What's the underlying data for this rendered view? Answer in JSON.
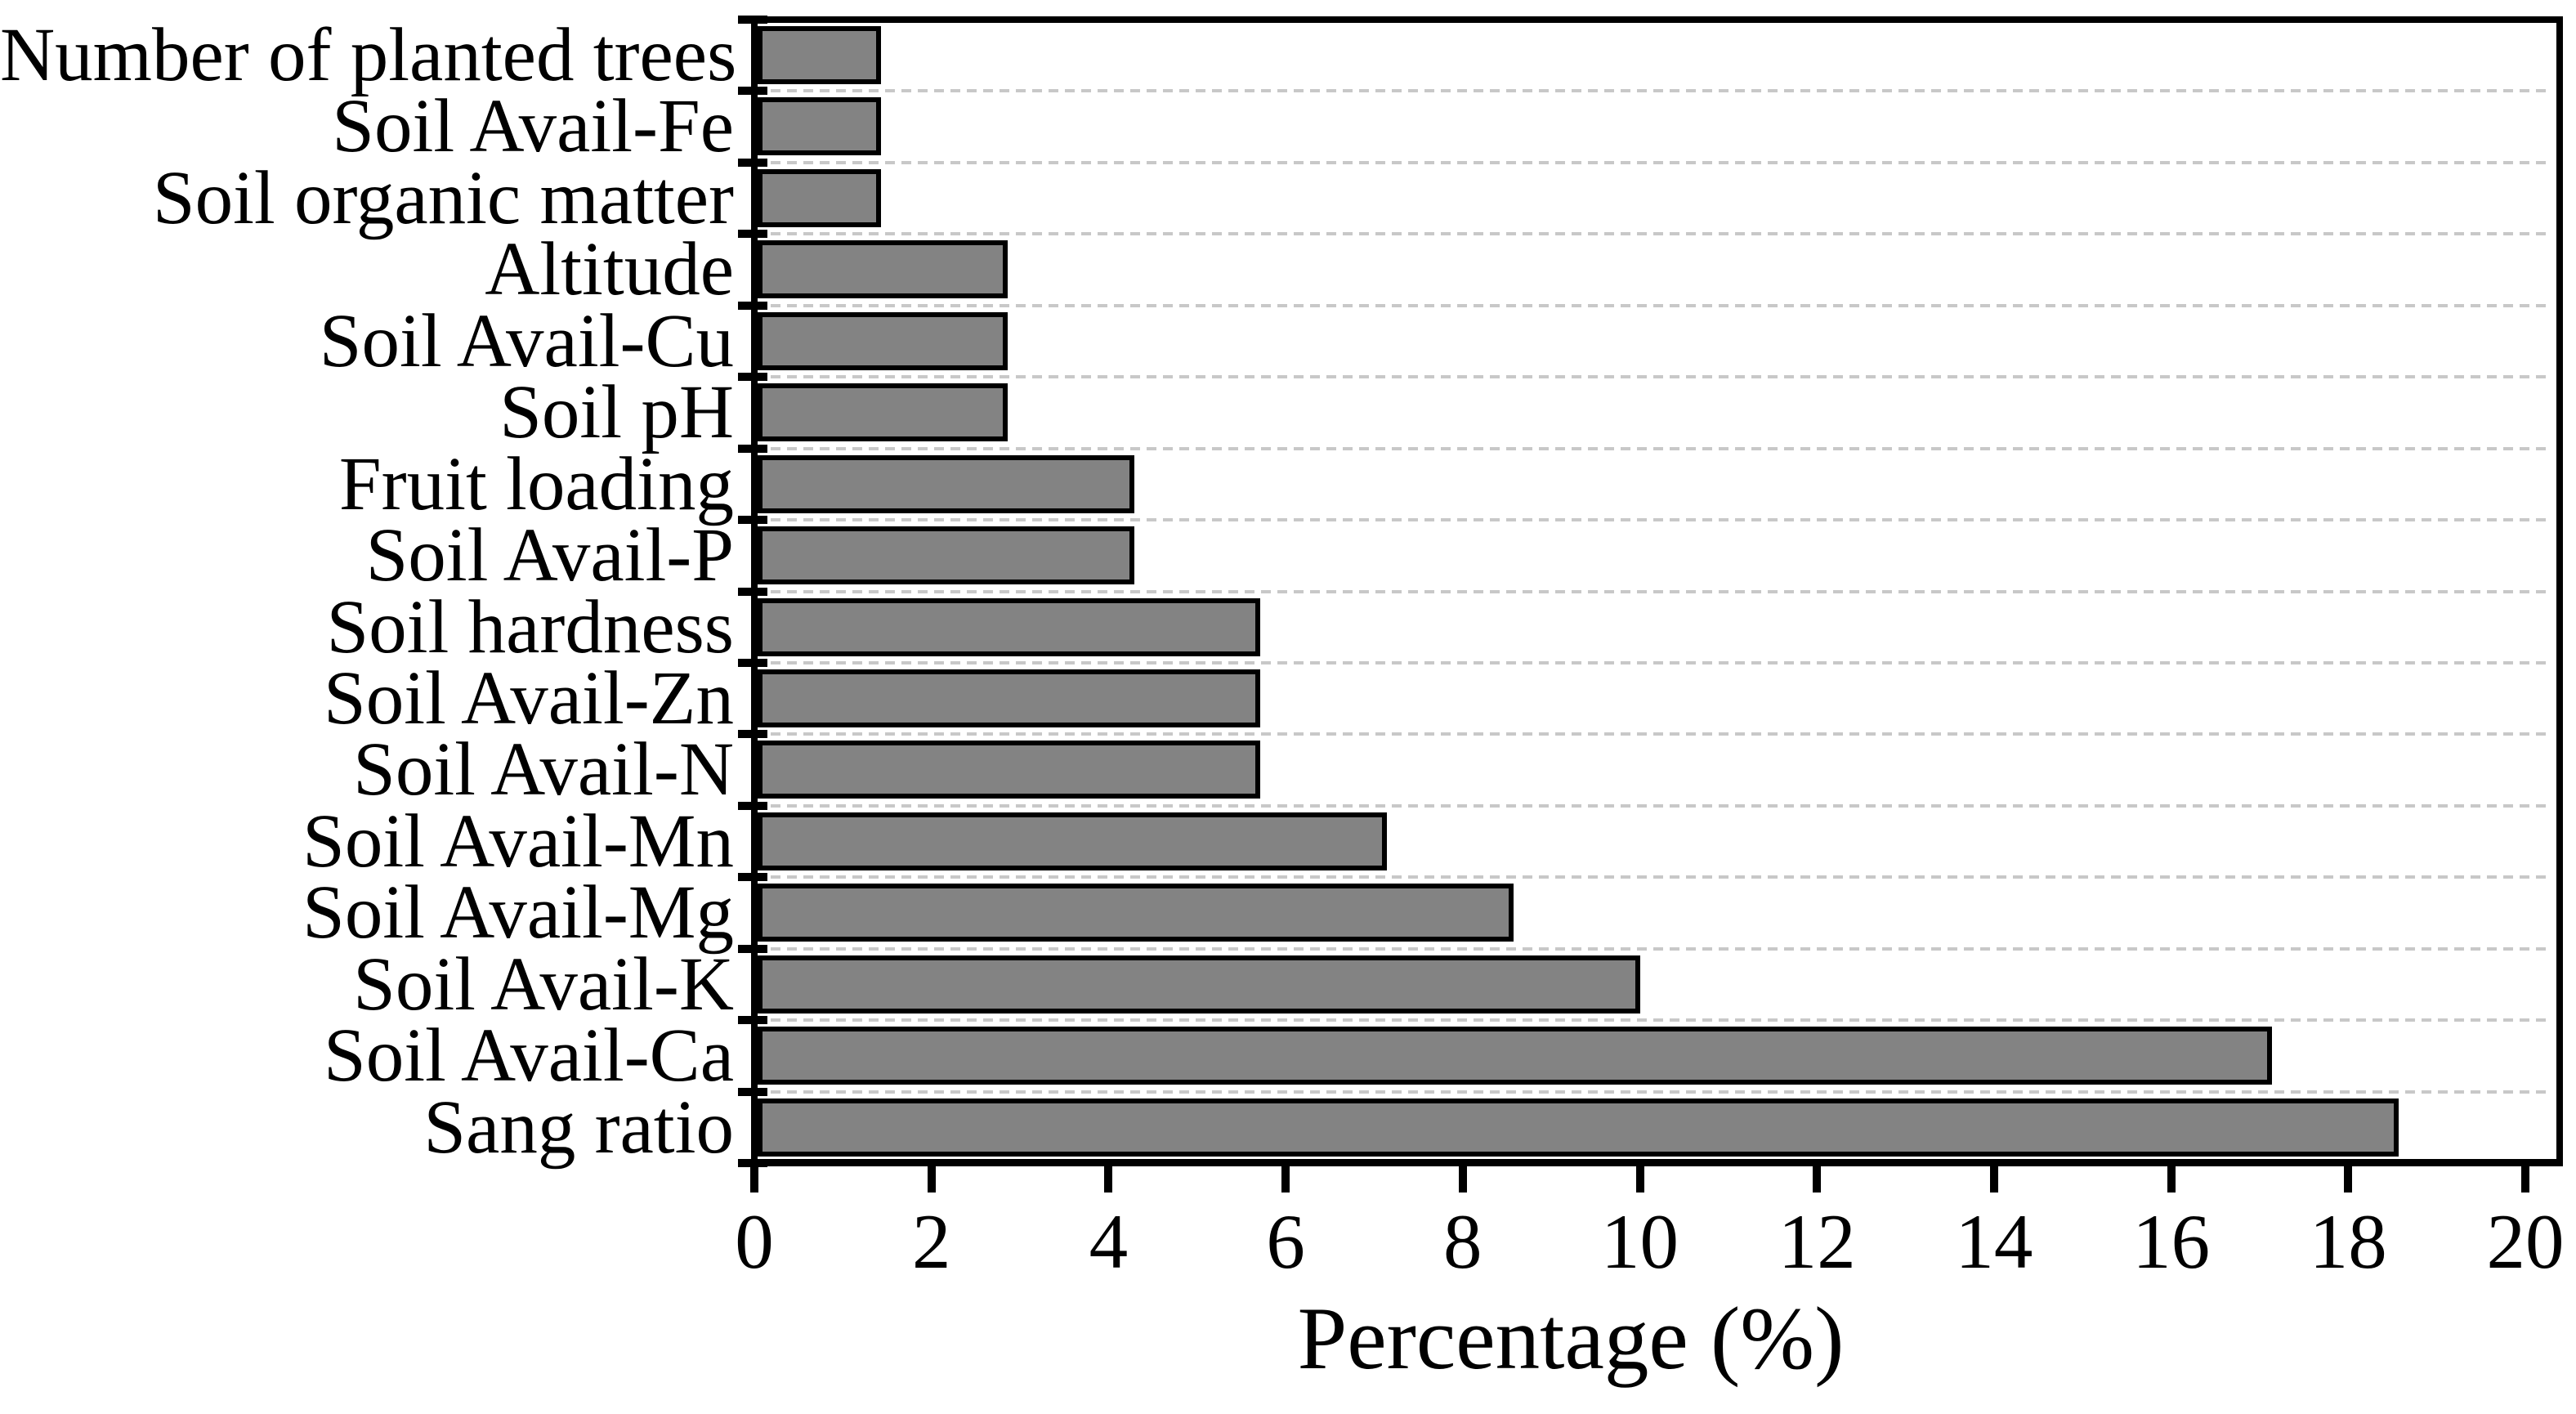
{
  "figure": {
    "background": "#ffffff"
  },
  "chart_data": {
    "type": "bar",
    "orientation": "horizontal",
    "xlabel": "Percentage (%)",
    "categories": [
      "Number of planted trees",
      "Soil Avail-Fe",
      "Soil organic matter",
      "Altitude",
      "Soil Avail-Cu",
      "Soil pH",
      "Fruit loading",
      "Soil Avail-P",
      "Soil hardness",
      "Soil Avail-Zn",
      "Soil Avail-N",
      "Soil Avail-Mn",
      "Soil Avail-Mg",
      "Soil Avail-K",
      "Soil Avail-Ca",
      "Sang ratio"
    ],
    "values": [
      1.43,
      1.43,
      1.43,
      2.86,
      2.86,
      2.86,
      4.29,
      4.29,
      5.71,
      5.71,
      5.71,
      7.14,
      8.57,
      10.0,
      17.14,
      18.57
    ],
    "xlim": [
      0,
      20.4
    ],
    "xticks": [
      "0",
      "2",
      "4",
      "6",
      "8",
      "10",
      "12",
      "14",
      "16",
      "18",
      "20"
    ],
    "grid": {
      "style": "dashed",
      "position": "category-boundaries",
      "color": "#c8c8c8"
    },
    "colors": {
      "bar_fill": "#838383",
      "bar_edge": "#000000",
      "axis": "#000000",
      "text": "#000000"
    },
    "legend": "none"
  }
}
